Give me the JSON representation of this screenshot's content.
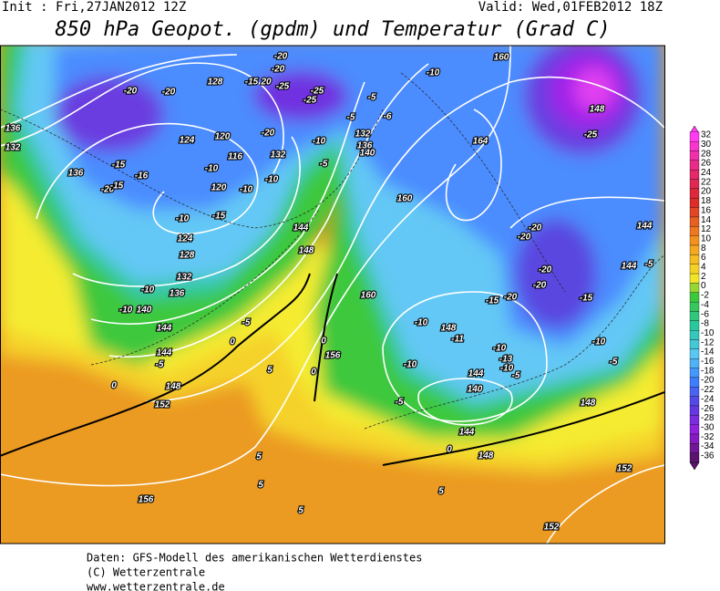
{
  "header": {
    "init": "Init : Fri,27JAN2012 12Z",
    "valid": "Valid: Wed,01FEB2012 18Z",
    "title": "850 hPa Geopot. (gpdm) und Temperatur (Grad C)"
  },
  "map": {
    "contour_labels": [
      "-20",
      "-20",
      "128",
      "-15",
      "20",
      "-20",
      "-20",
      "-25",
      "-25",
      "-25",
      "-5",
      "-5",
      "-6",
      "-10",
      "160",
      "148",
      "-25",
      "136",
      "132",
      "136",
      "-20",
      "-15",
      "-15",
      "-16",
      "124",
      "120",
      "116",
      "132",
      "-10",
      "120",
      "-10",
      "-10",
      "-15",
      "-20",
      "-10",
      "-5",
      "-10",
      "132",
      "136",
      "140",
      "164",
      "160",
      "144",
      "148",
      "124",
      "128",
      "132",
      "-10",
      "-10",
      "140",
      "136",
      "144",
      "-5",
      "-20",
      "-20",
      "-20",
      "-20",
      "-15",
      "144",
      "144",
      "-5",
      "160",
      "-15",
      "-20",
      "-10",
      "148",
      "-11",
      "-10",
      "-13",
      "-10",
      "-5",
      "-10",
      "-5",
      "-10",
      "-5",
      "144",
      "140",
      "144",
      "148",
      "148",
      "0",
      "156",
      "0",
      "0",
      "144",
      "148",
      "152",
      "156",
      "5",
      "5",
      "5",
      "5",
      "5",
      "152",
      "152",
      "0",
      "0",
      "-5"
    ]
  },
  "legend": {
    "labels": [
      32,
      30,
      28,
      26,
      24,
      22,
      20,
      18,
      16,
      14,
      12,
      10,
      8,
      6,
      4,
      2,
      0,
      -2,
      -4,
      -6,
      -8,
      -10,
      -12,
      -14,
      -16,
      -18,
      -20,
      -22,
      -24,
      -26,
      -28,
      -30,
      -32,
      -34,
      -36
    ]
  },
  "footer": {
    "lines": [
      "Daten: GFS-Modell des amerikanischen Wetterdienstes",
      "(C) Wetterzentrale",
      "www.wetterzentrale.de"
    ]
  }
}
